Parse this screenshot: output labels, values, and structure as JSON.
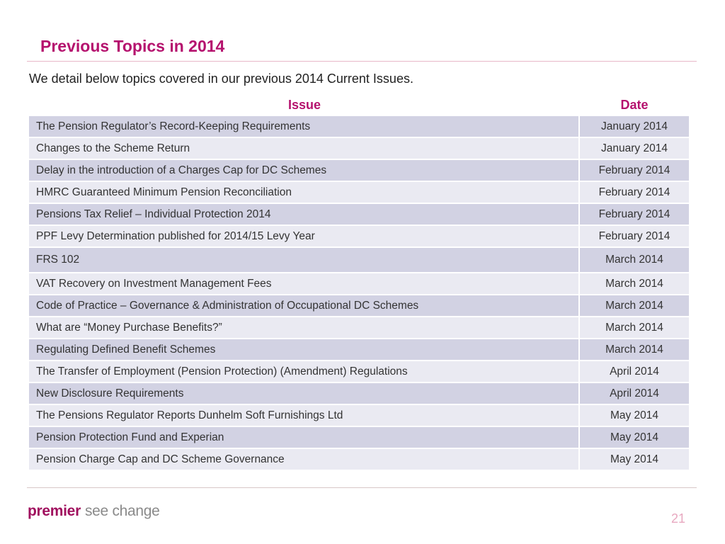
{
  "slide": {
    "title": "Previous Topics in 2014",
    "intro": "We detail below topics covered in our previous 2014 Current Issues.",
    "page_number": "21",
    "accent_color": "#b5126e"
  },
  "table": {
    "headers": [
      "Issue",
      "Date"
    ],
    "rows": [
      {
        "issue": "The Pension Regulator’s Record-Keeping Requirements",
        "date": "January 2014"
      },
      {
        "issue": "Changes to the Scheme Return",
        "date": "January 2014"
      },
      {
        "issue": "Delay in the introduction of a Charges Cap for DC Schemes",
        "date": "February 2014"
      },
      {
        "issue": "HMRC Guaranteed Minimum Pension Reconciliation",
        "date": "February 2014"
      },
      {
        "issue": "Pensions Tax Relief – Individual Protection 2014",
        "date": "February 2014"
      },
      {
        "issue": "PPF Levy Determination published for 2014/15 Levy Year",
        "date": "February 2014"
      },
      {
        "issue": "FRS 102",
        "date": "March 2014"
      },
      {
        "issue": "VAT Recovery on Investment Management Fees",
        "date": "March 2014"
      },
      {
        "issue": "Code of Practice – Governance & Administration of Occupational DC Schemes",
        "date": "March 2014"
      },
      {
        "issue": "What are “Money Purchase Benefits?”",
        "date": "March 2014"
      },
      {
        "issue": "Regulating Defined Benefit Schemes",
        "date": "March 2014"
      },
      {
        "issue": "The Transfer of Employment (Pension Protection) (Amendment) Regulations",
        "date": "April 2014"
      },
      {
        "issue": "New Disclosure Requirements",
        "date": "April 2014"
      },
      {
        "issue": "The Pensions Regulator Reports Dunhelm Soft Furnishings Ltd",
        "date": "May 2014"
      },
      {
        "issue": "Pension Protection Fund and Experian",
        "date": "May 2014"
      },
      {
        "issue": "Pension Charge Cap and DC Scheme Governance",
        "date": "May 2014"
      }
    ]
  },
  "footer": {
    "logo_strong": "premier",
    "logo_light": "see change"
  }
}
